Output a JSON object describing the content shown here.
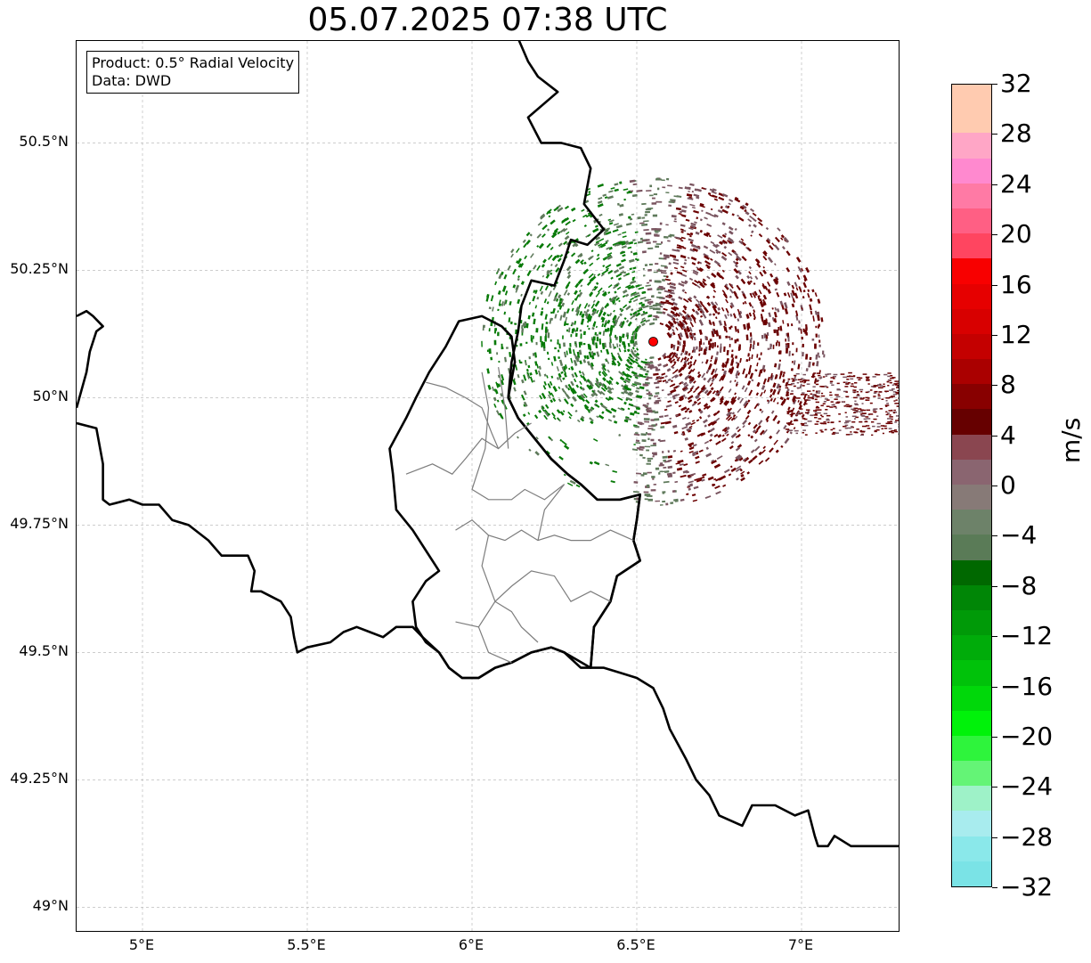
{
  "title": "05.07.2025 07:38 UTC",
  "info": {
    "product": "Product: 0.5° Radial Velocity",
    "data": "Data: DWD"
  },
  "map": {
    "lon_range": [
      4.8,
      7.3
    ],
    "lat_range": [
      48.95,
      50.7
    ],
    "lon_ticks": [
      {
        "value": 5.0,
        "label": "5°E"
      },
      {
        "value": 5.5,
        "label": "5.5°E"
      },
      {
        "value": 6.0,
        "label": "6°E"
      },
      {
        "value": 6.5,
        "label": "6.5°E"
      },
      {
        "value": 7.0,
        "label": "7°E"
      }
    ],
    "lat_ticks": [
      {
        "value": 50.5,
        "label": "50.5°N"
      },
      {
        "value": 50.25,
        "label": "50.25°N"
      },
      {
        "value": 50.0,
        "label": "50°N"
      },
      {
        "value": 49.75,
        "label": "49.75°N"
      },
      {
        "value": 49.5,
        "label": "49.5°N"
      },
      {
        "value": 49.25,
        "label": "49.25°N"
      },
      {
        "value": 49.0,
        "label": "49°N"
      }
    ],
    "gridlines": true,
    "radar_site": {
      "lon": 6.55,
      "lat": 50.11,
      "marker_color": "#ff0000"
    },
    "borders": {
      "be_de_border": [
        [
          6.13,
          50.72
        ],
        [
          6.17,
          50.66
        ],
        [
          6.2,
          50.63
        ],
        [
          6.26,
          50.6
        ],
        [
          6.17,
          50.55
        ],
        [
          6.21,
          50.5
        ],
        [
          6.27,
          50.5
        ],
        [
          6.33,
          50.49
        ],
        [
          6.36,
          50.45
        ],
        [
          6.34,
          50.38
        ],
        [
          6.4,
          50.33
        ],
        [
          6.35,
          50.3
        ],
        [
          6.3,
          50.31
        ],
        [
          6.28,
          50.27
        ],
        [
          6.25,
          50.22
        ],
        [
          6.18,
          50.23
        ],
        [
          6.15,
          50.18
        ],
        [
          6.14,
          50.13
        ],
        [
          6.12,
          50.07
        ],
        [
          6.11,
          50.0
        ],
        [
          6.14,
          49.96
        ],
        [
          6.19,
          49.92
        ],
        [
          6.24,
          49.88
        ],
        [
          6.29,
          49.85
        ],
        [
          6.33,
          49.83
        ],
        [
          6.38,
          49.8
        ],
        [
          6.45,
          49.8
        ],
        [
          6.51,
          49.81
        ],
        [
          6.5,
          49.76
        ],
        [
          6.49,
          49.72
        ],
        [
          6.51,
          49.68
        ],
        [
          6.44,
          49.65
        ],
        [
          6.42,
          49.6
        ],
        [
          6.37,
          49.55
        ],
        [
          6.36,
          49.47
        ]
      ],
      "be_fr_border": [
        [
          4.8,
          50.16
        ],
        [
          4.83,
          50.17
        ],
        [
          4.85,
          50.16
        ],
        [
          4.88,
          50.14
        ],
        [
          4.86,
          50.13
        ],
        [
          4.84,
          50.09
        ],
        [
          4.83,
          50.05
        ],
        [
          4.8,
          49.98
        ]
      ],
      "fr_be_border": [
        [
          4.8,
          49.95
        ],
        [
          4.86,
          49.94
        ],
        [
          4.88,
          49.87
        ],
        [
          4.88,
          49.8
        ],
        [
          4.9,
          49.79
        ],
        [
          4.96,
          49.8
        ],
        [
          5.0,
          49.79
        ],
        [
          5.05,
          49.79
        ],
        [
          5.09,
          49.76
        ],
        [
          5.14,
          49.75
        ],
        [
          5.2,
          49.72
        ],
        [
          5.24,
          49.69
        ],
        [
          5.32,
          49.69
        ],
        [
          5.34,
          49.66
        ],
        [
          5.33,
          49.62
        ],
        [
          5.36,
          49.62
        ],
        [
          5.42,
          49.6
        ],
        [
          5.45,
          49.57
        ],
        [
          5.46,
          49.53
        ],
        [
          5.47,
          49.5
        ],
        [
          5.5,
          49.51
        ],
        [
          5.57,
          49.52
        ],
        [
          5.61,
          49.54
        ],
        [
          5.65,
          49.55
        ],
        [
          5.69,
          49.54
        ],
        [
          5.73,
          49.53
        ],
        [
          5.77,
          49.55
        ],
        [
          5.82,
          49.55
        ],
        [
          5.85,
          49.53
        ],
        [
          5.9,
          49.5
        ],
        [
          5.93,
          49.47
        ],
        [
          5.97,
          49.45
        ],
        [
          6.02,
          49.45
        ],
        [
          6.07,
          49.47
        ],
        [
          6.12,
          49.48
        ],
        [
          6.18,
          49.5
        ],
        [
          6.24,
          49.51
        ],
        [
          6.28,
          49.5
        ],
        [
          6.33,
          49.47
        ],
        [
          6.36,
          49.47
        ],
        [
          6.4,
          49.47
        ],
        [
          6.45,
          49.46
        ],
        [
          6.5,
          49.45
        ],
        [
          6.55,
          49.43
        ],
        [
          6.58,
          49.39
        ],
        [
          6.6,
          49.35
        ],
        [
          6.65,
          49.29
        ],
        [
          6.68,
          49.25
        ],
        [
          6.72,
          49.22
        ],
        [
          6.75,
          49.18
        ],
        [
          6.82,
          49.16
        ],
        [
          6.85,
          49.2
        ],
        [
          6.92,
          49.2
        ],
        [
          6.98,
          49.18
        ],
        [
          7.02,
          49.19
        ],
        [
          7.04,
          49.14
        ],
        [
          7.05,
          49.12
        ],
        [
          7.08,
          49.12
        ],
        [
          7.1,
          49.14
        ],
        [
          7.15,
          49.12
        ],
        [
          7.2,
          49.12
        ],
        [
          7.25,
          49.12
        ],
        [
          7.3,
          49.12
        ]
      ],
      "lu_outline": [
        [
          5.9,
          49.5
        ],
        [
          5.86,
          49.52
        ],
        [
          5.83,
          49.55
        ],
        [
          5.82,
          49.6
        ],
        [
          5.86,
          49.64
        ],
        [
          5.9,
          49.66
        ],
        [
          5.86,
          49.7
        ],
        [
          5.82,
          49.74
        ],
        [
          5.77,
          49.78
        ],
        [
          5.76,
          49.85
        ],
        [
          5.75,
          49.9
        ],
        [
          5.8,
          49.96
        ],
        [
          5.83,
          50.0
        ],
        [
          5.87,
          50.05
        ],
        [
          5.92,
          50.1
        ],
        [
          5.96,
          50.15
        ],
        [
          6.03,
          50.16
        ],
        [
          6.09,
          50.14
        ],
        [
          6.12,
          50.12
        ],
        [
          6.13,
          50.07
        ],
        [
          6.11,
          50.0
        ],
        [
          6.14,
          49.96
        ],
        [
          6.19,
          49.92
        ],
        [
          6.24,
          49.88
        ],
        [
          6.29,
          49.85
        ],
        [
          6.33,
          49.83
        ],
        [
          6.38,
          49.8
        ],
        [
          6.45,
          49.8
        ],
        [
          6.51,
          49.81
        ],
        [
          6.5,
          49.76
        ],
        [
          6.49,
          49.72
        ],
        [
          6.51,
          49.68
        ],
        [
          6.44,
          49.65
        ],
        [
          6.42,
          49.6
        ],
        [
          6.37,
          49.55
        ],
        [
          6.36,
          49.47
        ],
        [
          6.28,
          49.5
        ],
        [
          6.24,
          49.51
        ],
        [
          6.18,
          49.5
        ],
        [
          6.12,
          49.48
        ],
        [
          6.07,
          49.47
        ],
        [
          6.02,
          49.45
        ],
        [
          5.97,
          49.45
        ],
        [
          5.93,
          49.47
        ],
        [
          5.9,
          49.5
        ]
      ],
      "lu_cantons": [
        [
          [
            5.8,
            49.85
          ],
          [
            5.88,
            49.87
          ],
          [
            5.94,
            49.85
          ],
          [
            5.98,
            49.88
          ],
          [
            6.03,
            49.92
          ],
          [
            6.08,
            49.9
          ],
          [
            6.13,
            49.93
          ],
          [
            6.18,
            49.95
          ]
        ],
        [
          [
            5.86,
            50.03
          ],
          [
            5.92,
            50.02
          ],
          [
            5.98,
            50.0
          ],
          [
            6.03,
            49.98
          ],
          [
            6.06,
            49.93
          ],
          [
            6.08,
            49.9
          ]
        ],
        [
          [
            6.03,
            50.05
          ],
          [
            6.05,
            49.98
          ],
          [
            6.04,
            49.9
          ],
          [
            6.0,
            49.82
          ],
          [
            6.05,
            49.8
          ],
          [
            6.12,
            49.8
          ],
          [
            6.16,
            49.82
          ],
          [
            6.22,
            49.8
          ],
          [
            6.28,
            49.83
          ]
        ],
        [
          [
            6.08,
            50.06
          ],
          [
            6.1,
            49.98
          ],
          [
            6.11,
            49.9
          ]
        ],
        [
          [
            5.95,
            49.74
          ],
          [
            6.0,
            49.76
          ],
          [
            6.05,
            49.73
          ],
          [
            6.1,
            49.72
          ],
          [
            6.15,
            49.74
          ],
          [
            6.2,
            49.72
          ],
          [
            6.25,
            49.73
          ],
          [
            6.3,
            49.72
          ],
          [
            6.36,
            49.72
          ],
          [
            6.42,
            49.74
          ],
          [
            6.49,
            49.72
          ]
        ],
        [
          [
            6.05,
            49.73
          ],
          [
            6.03,
            49.67
          ],
          [
            6.07,
            49.6
          ],
          [
            6.12,
            49.58
          ],
          [
            6.15,
            49.55
          ],
          [
            6.2,
            49.52
          ]
        ],
        [
          [
            5.95,
            49.56
          ],
          [
            6.02,
            49.55
          ],
          [
            6.07,
            49.6
          ],
          [
            6.12,
            49.63
          ],
          [
            6.18,
            49.66
          ],
          [
            6.25,
            49.65
          ],
          [
            6.3,
            49.6
          ],
          [
            6.36,
            49.62
          ],
          [
            6.42,
            49.6
          ]
        ],
        [
          [
            6.2,
            49.72
          ],
          [
            6.22,
            49.78
          ],
          [
            6.28,
            49.83
          ]
        ],
        [
          [
            6.02,
            49.55
          ],
          [
            6.05,
            49.5
          ],
          [
            6.12,
            49.48
          ]
        ]
      ]
    }
  },
  "colorbar": {
    "min": -32,
    "max": 32,
    "unit": "m/s",
    "tick_labels": [
      "32",
      "28",
      "24",
      "20",
      "16",
      "12",
      "8",
      "4",
      "0",
      "−4",
      "−8",
      "−12",
      "−16",
      "−20",
      "−24",
      "−28",
      "−32"
    ],
    "colors_bottom_to_top": [
      "#7ae3e6",
      "#8ae8ea",
      "#a8ecee",
      "#9ef2c8",
      "#64f476",
      "#2ef43c",
      "#00f20a",
      "#00d80a",
      "#00c20a",
      "#00ac0a",
      "#009a08",
      "#008606",
      "#006800",
      "#5a7b57",
      "#6d8269",
      "#877a77",
      "#8a6570",
      "#8a4650",
      "#660000",
      "#880000",
      "#aa0000",
      "#c40000",
      "#d80000",
      "#e60000",
      "#f80000",
      "#ff4560",
      "#ff5f84",
      "#ff7aa5",
      "#ff89cf",
      "#ffa6c6",
      "#ffcbb0",
      "#ffcbb0"
    ]
  },
  "velocity_echoes": {
    "description_colors": {
      "away_dark_red": "#6b0000",
      "away_muted": "#7a5560",
      "toward_green": "#087a08",
      "toward_gray_green": "#5f7a5b"
    }
  }
}
